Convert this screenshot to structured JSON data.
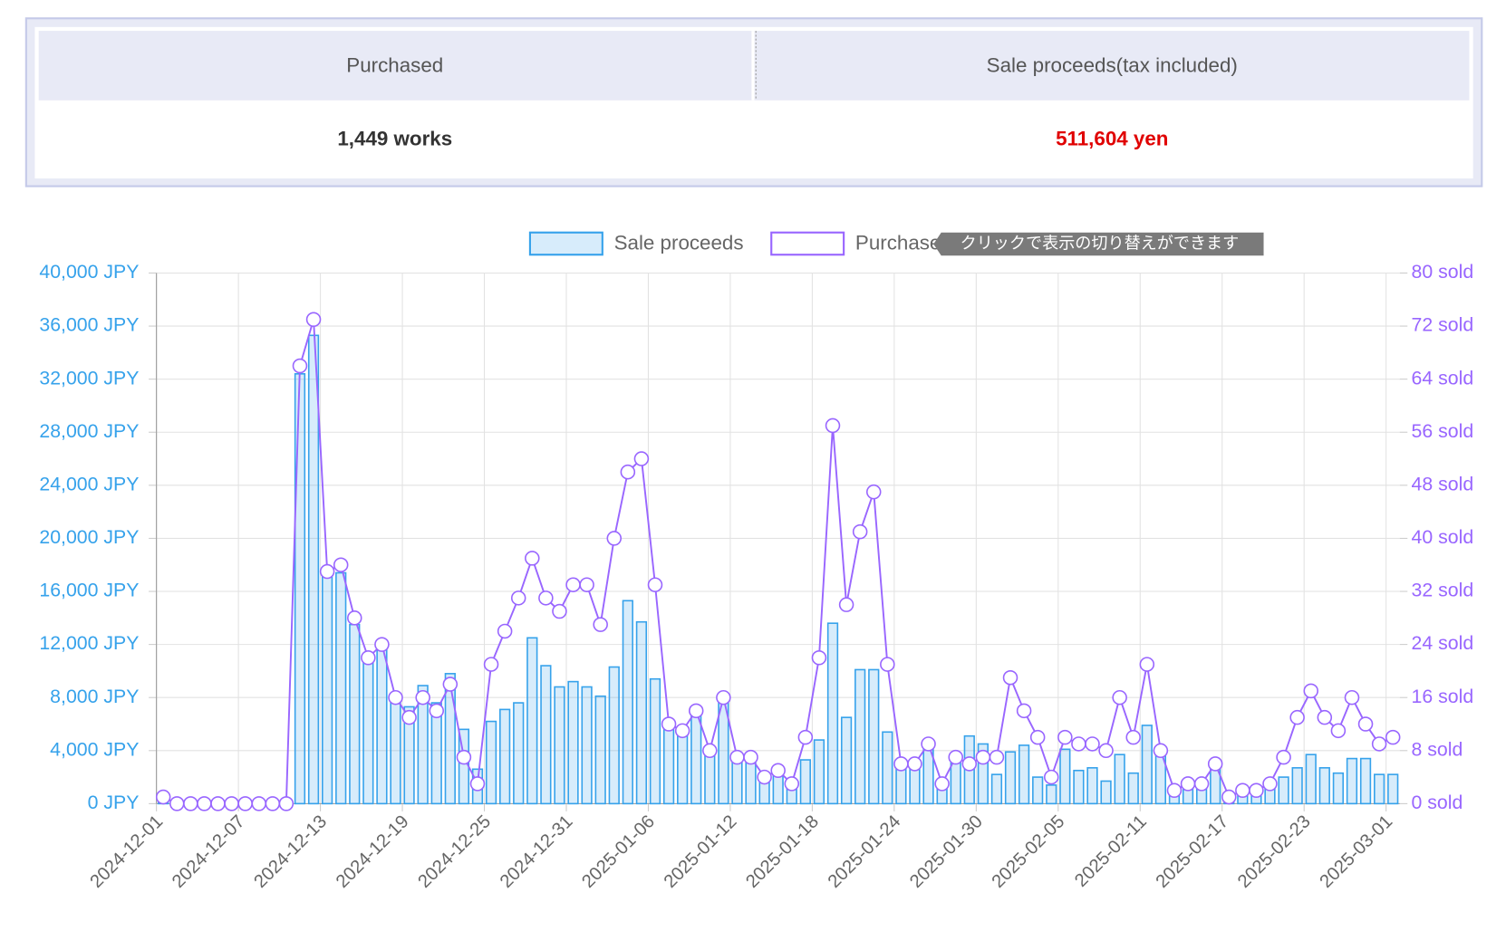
{
  "summary": {
    "headers": [
      "Purchased",
      "Sale proceeds(tax included)"
    ],
    "values": [
      "1,449 works",
      "511,604 yen"
    ]
  },
  "chart_data": {
    "type": "bar",
    "tooltip": "クリックで表示の切り替えができます",
    "categories": [
      "2024-12-01",
      null,
      null,
      null,
      null,
      null,
      "2024-12-07",
      null,
      null,
      null,
      null,
      null,
      "2024-12-13",
      null,
      null,
      null,
      null,
      null,
      "2024-12-19",
      null,
      null,
      null,
      null,
      null,
      "2024-12-25",
      null,
      null,
      null,
      null,
      null,
      "2024-12-31",
      null,
      null,
      null,
      null,
      null,
      "2025-01-06",
      null,
      null,
      null,
      null,
      null,
      "2025-01-12",
      null,
      null,
      null,
      null,
      null,
      "2025-01-18",
      null,
      null,
      null,
      null,
      null,
      "2025-01-24",
      null,
      null,
      null,
      null,
      null,
      "2025-01-30",
      null,
      null,
      null,
      null,
      null,
      "2025-02-05",
      null,
      null,
      null,
      null,
      null,
      "2025-02-11",
      null,
      null,
      null,
      null,
      null,
      "2025-02-17",
      null,
      null,
      null,
      null,
      null,
      "2025-02-23",
      null,
      null,
      null,
      null,
      null,
      "2025-03-01"
    ],
    "series": [
      {
        "name": "Sale proceeds",
        "type": "bar",
        "color": "#36a2eb",
        "values": [
          600,
          0,
          0,
          0,
          0,
          0,
          0,
          0,
          0,
          0,
          32400,
          35300,
          17200,
          17400,
          13500,
          10600,
          11700,
          7600,
          7300,
          8900,
          7600,
          9800,
          5600,
          2600,
          6200,
          7100,
          7600,
          12500,
          10400,
          8800,
          9200,
          8800,
          8100,
          10300,
          15300,
          13700,
          9400,
          5800,
          5300,
          6800,
          4000,
          7700,
          3400,
          3500,
          2000,
          2500,
          1500,
          3300,
          4800,
          13600,
          6500,
          10100,
          10100,
          5400,
          2700,
          2800,
          4400,
          1700,
          3500,
          5100,
          4500,
          2200,
          3900,
          4400,
          2000,
          1400,
          4100,
          2500,
          2700,
          1700,
          3700,
          2300,
          5900,
          3600,
          900,
          1500,
          1500,
          2900,
          600,
          1000,
          1000,
          1500,
          2000,
          2700,
          3700,
          2700,
          2300,
          3400,
          3400,
          2200,
          2200
        ]
      },
      {
        "name": "Purchased",
        "type": "line",
        "axis": "y2",
        "color": "#9966ff",
        "values": [
          1,
          0,
          0,
          0,
          0,
          0,
          0,
          0,
          0,
          0,
          66,
          73,
          35,
          36,
          28,
          22,
          24,
          16,
          13,
          16,
          14,
          18,
          7,
          3,
          21,
          26,
          31,
          37,
          31,
          29,
          33,
          33,
          27,
          40,
          50,
          52,
          33,
          12,
          11,
          14,
          8,
          16,
          7,
          7,
          4,
          5,
          3,
          10,
          22,
          57,
          30,
          41,
          47,
          21,
          6,
          6,
          9,
          3,
          7,
          6,
          7,
          7,
          19,
          14,
          10,
          4,
          10,
          9,
          9,
          8,
          16,
          10,
          21,
          8,
          2,
          3,
          3,
          6,
          1,
          2,
          2,
          3,
          7,
          13,
          17,
          13,
          11,
          16,
          12,
          9,
          10
        ]
      }
    ],
    "ylim": [
      0,
      40000
    ],
    "yticks": [
      {
        "value": 0,
        "label": "0 JPY"
      },
      {
        "value": 4000,
        "label": "4,000 JPY"
      },
      {
        "value": 8000,
        "label": "8,000 JPY"
      },
      {
        "value": 12000,
        "label": "12,000 JPY"
      },
      {
        "value": 16000,
        "label": "16,000 JPY"
      },
      {
        "value": 20000,
        "label": "20,000 JPY"
      },
      {
        "value": 24000,
        "label": "24,000 JPY"
      },
      {
        "value": 28000,
        "label": "28,000 JPY"
      },
      {
        "value": 32000,
        "label": "32,000 JPY"
      },
      {
        "value": 36000,
        "label": "36,000 JPY"
      },
      {
        "value": 40000,
        "label": "40,000 JPY"
      }
    ],
    "y2lim": [
      0,
      80
    ],
    "y2ticks": [
      {
        "value": 0,
        "label": "0 sold"
      },
      {
        "value": 8,
        "label": "8 sold"
      },
      {
        "value": 16,
        "label": "16 sold"
      },
      {
        "value": 24,
        "label": "24 sold"
      },
      {
        "value": 32,
        "label": "32 sold"
      },
      {
        "value": 40,
        "label": "40 sold"
      },
      {
        "value": 48,
        "label": "48 sold"
      },
      {
        "value": 56,
        "label": "56 sold"
      },
      {
        "value": 64,
        "label": "64 sold"
      },
      {
        "value": 72,
        "label": "72 sold"
      },
      {
        "value": 80,
        "label": "80 sold"
      }
    ],
    "grid": true
  }
}
